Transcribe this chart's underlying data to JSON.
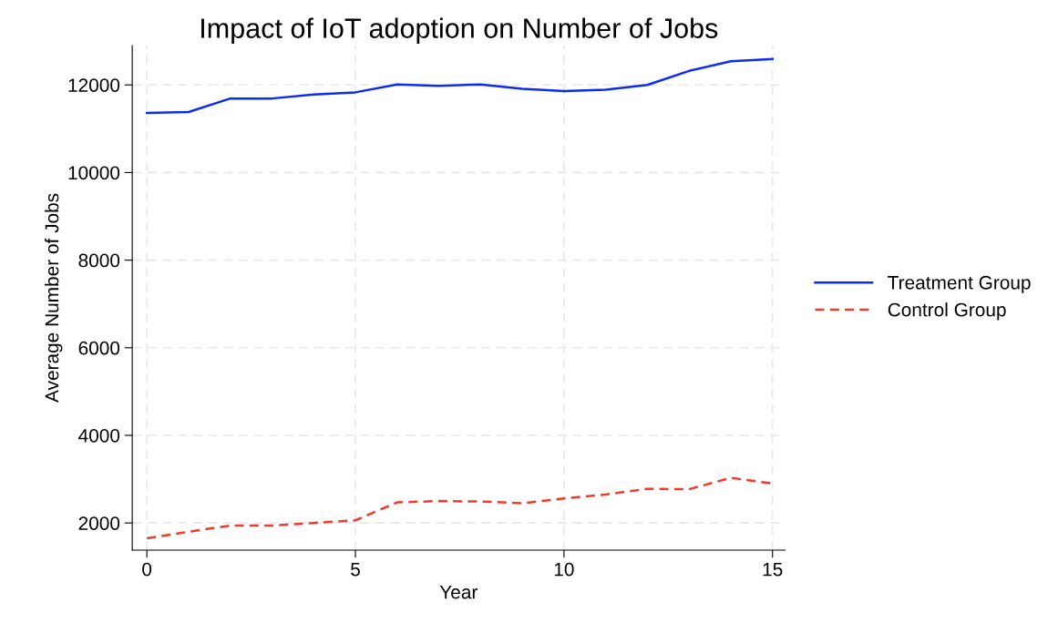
{
  "chart_data": {
    "type": "line",
    "title": "Impact of IoT adoption on Number of Jobs",
    "xlabel": "Year",
    "ylabel": "Average Number of Jobs",
    "x": [
      0,
      1,
      2,
      3,
      4,
      5,
      6,
      7,
      8,
      9,
      10,
      11,
      12,
      13,
      14,
      15
    ],
    "series": [
      {
        "name": "Treatment Group",
        "color": "#0a2cf5",
        "line_style": "solid",
        "values": [
          11360,
          11380,
          11690,
          11690,
          11780,
          11830,
          12010,
          11980,
          12010,
          11910,
          11860,
          11890,
          12000,
          12320,
          12540,
          12590
        ]
      },
      {
        "name": "Control Group",
        "color": "#f03a2c",
        "line_style": "dashed",
        "values": [
          1650,
          1800,
          1940,
          1940,
          2000,
          2060,
          2470,
          2500,
          2490,
          2450,
          2560,
          2650,
          2780,
          2770,
          3030,
          2900
        ]
      }
    ],
    "xlim": [
      -0.35,
      15.3
    ],
    "xticks": [
      0,
      5,
      10,
      15
    ],
    "ylim": [
      1380,
      12900
    ],
    "yticks": [
      2000,
      4000,
      6000,
      8000,
      10000,
      12000
    ],
    "grid": true,
    "legend": "right"
  }
}
